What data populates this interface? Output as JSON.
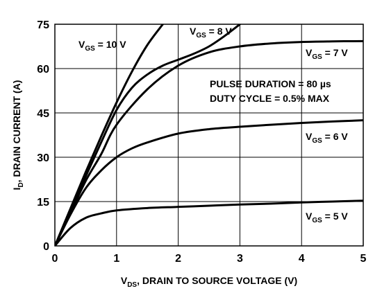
{
  "chart_data": {
    "type": "line",
    "xlabel": {
      "main": "V",
      "sub": "DS",
      "rest": ", DRAIN TO SOURCE VOLTAGE (V)"
    },
    "ylabel": {
      "main": "I",
      "sub": "D",
      "rest": ", DRAIN CURRENT (A)"
    },
    "xlim": [
      0,
      5
    ],
    "ylim": [
      0,
      75
    ],
    "xticks": [
      "0",
      "1",
      "2",
      "3",
      "4",
      "5"
    ],
    "yticks": [
      "0",
      "15",
      "30",
      "45",
      "60",
      "75"
    ],
    "grid": true,
    "annotations": [
      "PULSE DURATION = 80 µs",
      "DUTY CYCLE = 0.5% MAX"
    ],
    "series": [
      {
        "name": {
          "main": "V",
          "sub": "GS",
          "rest": " = 10 V"
        },
        "x": [
          0,
          0.25,
          0.5,
          0.75,
          1.0,
          1.25,
          1.5,
          1.75
        ],
        "y": [
          0,
          12.5,
          25,
          37,
          48.5,
          59,
          68,
          75
        ]
      },
      {
        "name": {
          "main": "V",
          "sub": "GS",
          "rest": " = 8 V"
        },
        "x": [
          0,
          0.25,
          0.5,
          0.75,
          1.0,
          1.25,
          1.5,
          1.75,
          2.0,
          2.25,
          2.5,
          2.75,
          3.0
        ],
        "y": [
          0,
          12,
          23.5,
          35,
          46,
          53.5,
          58,
          61,
          63,
          65,
          67.5,
          71,
          75
        ]
      },
      {
        "name": {
          "main": "V",
          "sub": "GS",
          "rest": " = 7 V"
        },
        "x": [
          0,
          0.25,
          0.5,
          0.75,
          1.0,
          1.5,
          2.0,
          2.5,
          3.0,
          3.5,
          4.0,
          4.5,
          5.0
        ],
        "y": [
          0,
          11,
          22,
          31,
          41,
          53,
          61,
          65.5,
          67.5,
          68.5,
          69,
          69.2,
          69.3
        ]
      },
      {
        "name": {
          "main": "V",
          "sub": "GS",
          "rest": " = 6 V"
        },
        "x": [
          0,
          0.25,
          0.5,
          0.75,
          1.0,
          1.25,
          1.5,
          2.0,
          2.5,
          3.0,
          3.5,
          4.0,
          4.5,
          5.0
        ],
        "y": [
          0,
          10.5,
          19.5,
          25.5,
          30,
          33,
          35,
          38,
          39.5,
          40.3,
          41,
          41.6,
          42.1,
          42.5
        ]
      },
      {
        "name": {
          "main": "V",
          "sub": "GS",
          "rest": " = 5 V"
        },
        "x": [
          0,
          0.25,
          0.5,
          0.75,
          1.0,
          1.5,
          2.0,
          2.5,
          3.0,
          3.5,
          4.0,
          4.5,
          5.0
        ],
        "y": [
          0,
          6,
          9.5,
          11,
          12,
          12.8,
          13.2,
          13.6,
          14,
          14.3,
          14.7,
          15,
          15.3
        ]
      }
    ]
  }
}
